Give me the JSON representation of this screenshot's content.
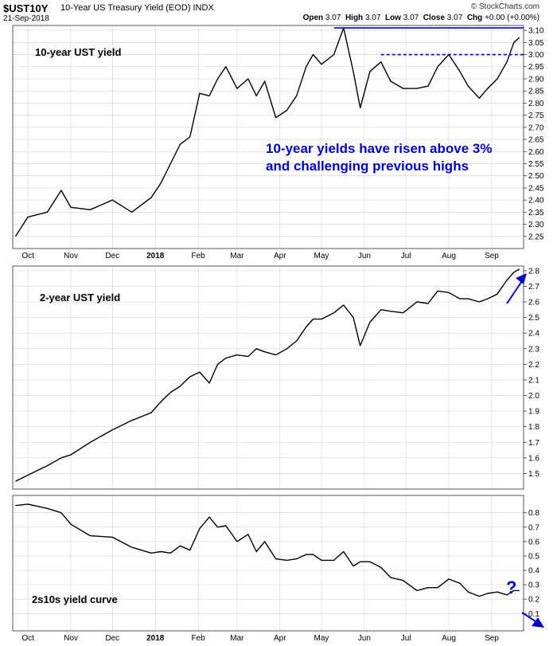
{
  "header": {
    "symbol": "$UST10Y",
    "description": "10-Year US Treasury Yield (EOD)",
    "exchange": "INDX",
    "date": "21-Sep-2018",
    "brand": "© StockCharts.com",
    "open_label": "Open",
    "open": "3.07",
    "high_label": "High",
    "high": "3.07",
    "low_label": "Low",
    "low": "3.07",
    "close_label": "Close",
    "close": "3.07",
    "chg_label": "Chg",
    "chg": "+0.00 (+0.00%)"
  },
  "colors": {
    "line": "#000000",
    "annotation": "#0000cc",
    "grid": "#d0d0d0",
    "frame": "#555555"
  },
  "x_axis_labels": [
    "Oct",
    "Nov",
    "Dec",
    "2018",
    "Feb",
    "Mar",
    "Apr",
    "May",
    "Jun",
    "Jul",
    "Aug",
    "Sep"
  ],
  "chart_data": [
    {
      "type": "line",
      "panel_label": "10-year UST yield",
      "annotation": [
        "10-year yields have risen above 3%",
        "and challenging previous highs"
      ],
      "ylim": [
        2.2,
        3.12
      ],
      "yticks": [
        "2.25",
        "2.30",
        "2.35",
        "2.40",
        "2.45",
        "2.50",
        "2.55",
        "2.60",
        "2.65",
        "2.70",
        "2.75",
        "2.80",
        "2.85",
        "2.90",
        "2.95",
        "3.00",
        "3.05",
        "3.10"
      ],
      "resistance_level": 3.11,
      "support_level": 3.0,
      "x": [
        "2017-09-22",
        "2017-10-01",
        "2017-10-15",
        "2017-10-25",
        "2017-11-01",
        "2017-11-15",
        "2017-12-01",
        "2017-12-15",
        "2017-12-29",
        "2018-01-05",
        "2018-01-12",
        "2018-01-19",
        "2018-01-26",
        "2018-02-02",
        "2018-02-09",
        "2018-02-15",
        "2018-02-21",
        "2018-03-01",
        "2018-03-09",
        "2018-03-15",
        "2018-03-21",
        "2018-03-29",
        "2018-04-06",
        "2018-04-13",
        "2018-04-20",
        "2018-04-25",
        "2018-05-01",
        "2018-05-10",
        "2018-05-17",
        "2018-05-24",
        "2018-05-29",
        "2018-06-05",
        "2018-06-13",
        "2018-06-20",
        "2018-06-29",
        "2018-07-09",
        "2018-07-17",
        "2018-07-24",
        "2018-08-01",
        "2018-08-09",
        "2018-08-15",
        "2018-08-23",
        "2018-08-29",
        "2018-09-05",
        "2018-09-12",
        "2018-09-17",
        "2018-09-21"
      ],
      "values": [
        2.25,
        2.33,
        2.35,
        2.44,
        2.37,
        2.36,
        2.4,
        2.35,
        2.41,
        2.47,
        2.55,
        2.63,
        2.66,
        2.84,
        2.83,
        2.9,
        2.95,
        2.86,
        2.9,
        2.83,
        2.89,
        2.74,
        2.77,
        2.83,
        2.95,
        3.0,
        2.96,
        3.0,
        3.11,
        2.93,
        2.78,
        2.93,
        2.97,
        2.89,
        2.86,
        2.86,
        2.87,
        2.95,
        3.0,
        2.93,
        2.87,
        2.82,
        2.86,
        2.9,
        2.97,
        3.05,
        3.07
      ]
    },
    {
      "type": "line",
      "panel_label": "2-year UST yield",
      "ylim": [
        1.4,
        2.83
      ],
      "yticks": [
        "1.5",
        "1.6",
        "1.7",
        "1.8",
        "1.9",
        "2.0",
        "2.1",
        "2.2",
        "2.3",
        "2.4",
        "2.5",
        "2.6",
        "2.7",
        "2.8"
      ],
      "x": [
        "2017-09-22",
        "2017-10-01",
        "2017-10-15",
        "2017-10-25",
        "2017-11-01",
        "2017-11-15",
        "2017-12-01",
        "2017-12-15",
        "2017-12-29",
        "2018-01-05",
        "2018-01-12",
        "2018-01-19",
        "2018-01-26",
        "2018-02-02",
        "2018-02-09",
        "2018-02-15",
        "2018-02-21",
        "2018-03-01",
        "2018-03-09",
        "2018-03-15",
        "2018-03-21",
        "2018-03-29",
        "2018-04-06",
        "2018-04-13",
        "2018-04-20",
        "2018-04-25",
        "2018-05-01",
        "2018-05-10",
        "2018-05-17",
        "2018-05-24",
        "2018-05-29",
        "2018-06-05",
        "2018-06-13",
        "2018-06-20",
        "2018-06-29",
        "2018-07-09",
        "2018-07-17",
        "2018-07-24",
        "2018-08-01",
        "2018-08-09",
        "2018-08-15",
        "2018-08-23",
        "2018-08-29",
        "2018-09-05",
        "2018-09-12",
        "2018-09-17",
        "2018-09-21"
      ],
      "values": [
        1.45,
        1.49,
        1.55,
        1.6,
        1.62,
        1.7,
        1.78,
        1.84,
        1.89,
        1.96,
        2.02,
        2.06,
        2.12,
        2.15,
        2.08,
        2.2,
        2.24,
        2.26,
        2.25,
        2.3,
        2.28,
        2.26,
        2.3,
        2.35,
        2.44,
        2.49,
        2.49,
        2.53,
        2.58,
        2.5,
        2.32,
        2.47,
        2.55,
        2.54,
        2.53,
        2.6,
        2.59,
        2.67,
        2.66,
        2.62,
        2.62,
        2.6,
        2.62,
        2.65,
        2.74,
        2.79,
        2.81
      ]
    },
    {
      "type": "line",
      "panel_label": "2s10s yield curve",
      "ylim": [
        -0.02,
        0.92
      ],
      "yticks": [
        "0.1",
        "0.2",
        "0.3",
        "0.4",
        "0.5",
        "0.6",
        "0.7",
        "0.8"
      ],
      "question_mark": "?",
      "x": [
        "2017-09-22",
        "2017-10-01",
        "2017-10-15",
        "2017-10-25",
        "2017-11-01",
        "2017-11-15",
        "2017-12-01",
        "2017-12-15",
        "2017-12-29",
        "2018-01-05",
        "2018-01-12",
        "2018-01-19",
        "2018-01-26",
        "2018-02-02",
        "2018-02-09",
        "2018-02-15",
        "2018-02-21",
        "2018-03-01",
        "2018-03-09",
        "2018-03-15",
        "2018-03-21",
        "2018-03-29",
        "2018-04-06",
        "2018-04-13",
        "2018-04-20",
        "2018-04-25",
        "2018-05-01",
        "2018-05-10",
        "2018-05-17",
        "2018-05-24",
        "2018-05-29",
        "2018-06-05",
        "2018-06-13",
        "2018-06-20",
        "2018-06-29",
        "2018-07-09",
        "2018-07-17",
        "2018-07-24",
        "2018-08-01",
        "2018-08-09",
        "2018-08-15",
        "2018-08-23",
        "2018-08-29",
        "2018-09-05",
        "2018-09-12",
        "2018-09-17",
        "2018-09-21"
      ],
      "values": [
        0.85,
        0.86,
        0.83,
        0.8,
        0.72,
        0.64,
        0.63,
        0.56,
        0.52,
        0.53,
        0.52,
        0.57,
        0.54,
        0.69,
        0.77,
        0.7,
        0.71,
        0.6,
        0.65,
        0.53,
        0.6,
        0.48,
        0.47,
        0.48,
        0.51,
        0.51,
        0.47,
        0.47,
        0.53,
        0.43,
        0.46,
        0.46,
        0.42,
        0.35,
        0.33,
        0.26,
        0.28,
        0.28,
        0.34,
        0.31,
        0.25,
        0.22,
        0.24,
        0.25,
        0.23,
        0.26,
        0.26
      ]
    }
  ]
}
